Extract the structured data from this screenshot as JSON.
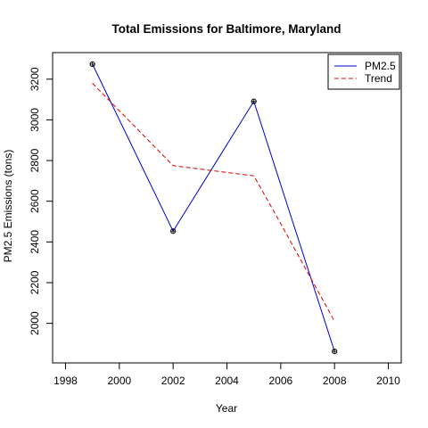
{
  "chart_data": {
    "type": "line",
    "title": "Total Emissions for Baltimore, Maryland",
    "xlabel": "Year",
    "ylabel": "PM2.5 Emissions (tons)",
    "xlim": [
      1998,
      2010
    ],
    "ylim": [
      1862,
      3274
    ],
    "x_ticks": [
      1998,
      2000,
      2002,
      2004,
      2006,
      2008,
      2010
    ],
    "y_ticks": [
      2000,
      2200,
      2400,
      2600,
      2800,
      3000,
      3200
    ],
    "grid": false,
    "legend_position": "top-right",
    "series": [
      {
        "name": "PM2.5",
        "color": "#0000cc",
        "line_style": "solid",
        "markers": true,
        "x": [
          1999,
          2002,
          2005,
          2008
        ],
        "y": [
          3274,
          2453,
          3091,
          1862
        ]
      },
      {
        "name": "Trend",
        "color": "#dd0000",
        "line_style": "dashed",
        "markers": false,
        "x": [
          1999,
          2002,
          2005,
          2006,
          2008
        ],
        "y": [
          3180,
          2775,
          2725,
          2490,
          2010
        ]
      }
    ]
  }
}
